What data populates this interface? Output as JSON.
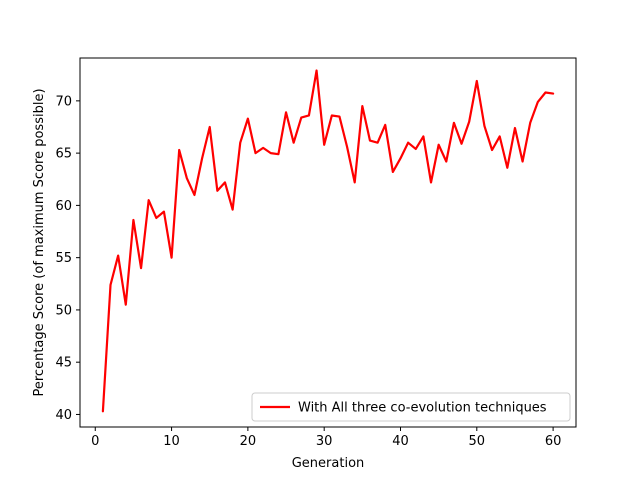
{
  "chart_data": {
    "type": "line",
    "title": "",
    "xlabel": "Generation",
    "ylabel": "Percentage Score (of maximum Score possible)",
    "xlim": [
      -2,
      63
    ],
    "ylim": [
      38.8,
      74.1
    ],
    "xticks": [
      0,
      10,
      20,
      30,
      40,
      50,
      60
    ],
    "yticks": [
      40,
      45,
      50,
      55,
      60,
      65,
      70
    ],
    "grid": false,
    "legend_position": "lower-right",
    "series": [
      {
        "name": "With All three co-evolution techniques",
        "color": "#ff0000",
        "x": [
          1,
          2,
          3,
          4,
          5,
          6,
          7,
          8,
          9,
          10,
          11,
          12,
          13,
          14,
          15,
          16,
          17,
          18,
          19,
          20,
          21,
          22,
          23,
          24,
          25,
          26,
          27,
          28,
          29,
          30,
          31,
          32,
          33,
          34,
          35,
          36,
          37,
          38,
          39,
          40,
          41,
          42,
          43,
          44,
          45,
          46,
          47,
          48,
          49,
          50,
          51,
          52,
          53,
          54,
          55,
          56,
          57,
          58,
          59,
          60
        ],
        "y": [
          40.3,
          52.4,
          55.2,
          50.5,
          58.6,
          54.0,
          60.5,
          58.8,
          59.4,
          55.0,
          65.3,
          62.6,
          61.0,
          64.5,
          67.5,
          61.4,
          62.2,
          59.6,
          66.0,
          68.3,
          65.0,
          65.5,
          65.0,
          64.9,
          68.9,
          66.0,
          68.4,
          68.6,
          72.9,
          65.8,
          68.6,
          68.5,
          65.6,
          62.2,
          69.5,
          66.2,
          66.0,
          67.7,
          63.2,
          64.5,
          66.0,
          65.4,
          66.6,
          62.2,
          65.8,
          64.2,
          67.9,
          65.9,
          68.0,
          71.9,
          67.6,
          65.3,
          66.6,
          63.6,
          67.4,
          64.2,
          67.9,
          69.9,
          70.8,
          70.7
        ]
      }
    ]
  }
}
